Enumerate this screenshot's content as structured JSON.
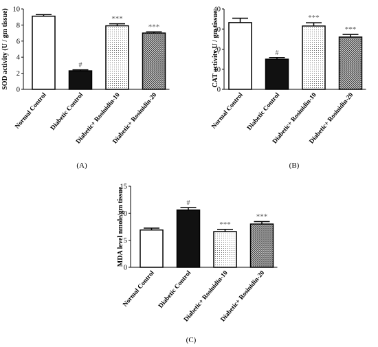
{
  "chart_data": [
    {
      "type": "bar",
      "panel_label": "(A)",
      "ylabel": "SOD activity (U / gm tissue)",
      "categories": [
        "Normal Control",
        "Diabetic Control",
        "Diabetic+ Rosinidin-10",
        "Diabetic+ Rosinidin-20"
      ],
      "values": [
        9.1,
        2.3,
        7.9,
        7.0
      ],
      "errors": [
        0.2,
        0.12,
        0.25,
        0.15
      ],
      "annotations": [
        "",
        "#",
        "***",
        "***"
      ],
      "ylim": [
        0,
        10
      ],
      "yticks": [
        0,
        2,
        4,
        6,
        8,
        10
      ]
    },
    {
      "type": "bar",
      "panel_label": "(B)",
      "ylabel": "CAT activity  U / gm tissue",
      "categories": [
        "Normal Control",
        "Diabetic Control",
        "Diabetic+ Rosinidin-10",
        "Diabetic+ Rosinidin-20"
      ],
      "values": [
        33.2,
        15.0,
        31.5,
        26.0
      ],
      "errors": [
        2.2,
        0.8,
        1.6,
        1.3
      ],
      "annotations": [
        "",
        "#",
        "***",
        "***"
      ],
      "ylim": [
        0,
        40
      ],
      "yticks": [
        0,
        10,
        20,
        30,
        40
      ]
    },
    {
      "type": "bar",
      "panel_label": "(C)",
      "ylabel": "MDA level nmole/gm tissue",
      "categories": [
        "Normal Control",
        "Diabetic Control",
        "Diabetic+ Rosinidin-10",
        "Diabetic+ Rosinidin-20"
      ],
      "values": [
        6.9,
        10.6,
        6.6,
        8.0
      ],
      "errors": [
        0.35,
        0.45,
        0.4,
        0.45
      ],
      "annotations": [
        "",
        "#",
        "***",
        "***"
      ],
      "ylim": [
        0,
        15
      ],
      "yticks": [
        0,
        5,
        10,
        15
      ]
    }
  ],
  "fills": [
    "white",
    "black",
    "dots",
    "crosshatch"
  ],
  "colors": {
    "bar_stroke": "#000000",
    "diabetic_fill": "#111111",
    "annotation": "#555555"
  }
}
